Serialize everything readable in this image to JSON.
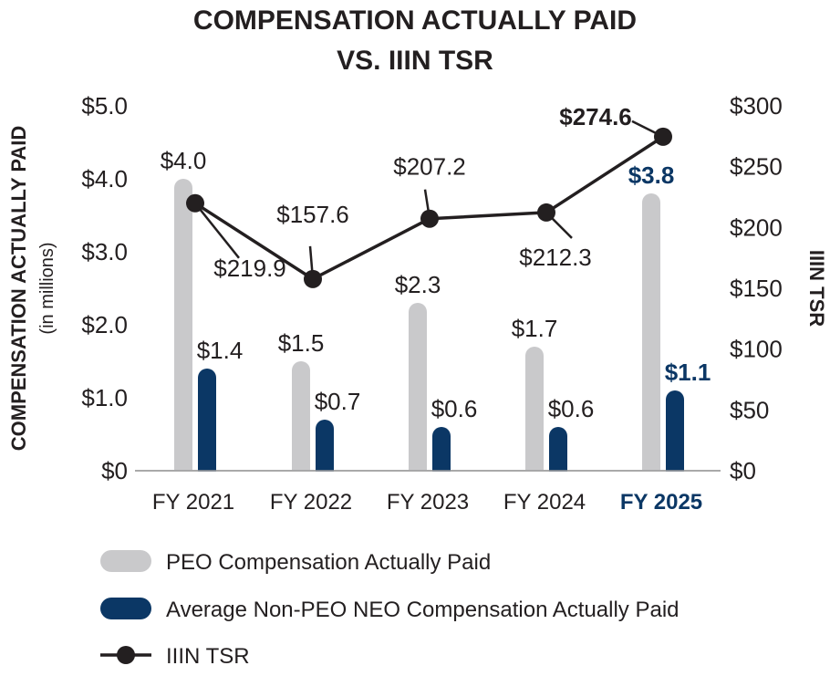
{
  "chart_data": {
    "type": "bar",
    "title_lines": [
      "COMPENSATION ACTUALLY PAID",
      "VS. IIIN TSR"
    ],
    "categories": [
      "FY 2021",
      "FY 2022",
      "FY 2023",
      "FY 2024",
      "FY 2025"
    ],
    "highlight_category": "FY 2025",
    "y_left": {
      "label": "COMPENSATION ACTUALLY PAID",
      "sublabel": "(in millions)",
      "range": [
        0,
        5
      ],
      "ticks": [
        0,
        1,
        2,
        3,
        4,
        5
      ],
      "tick_labels": [
        "$0",
        "$1.0",
        "$2.0",
        "$3.0",
        "$4.0",
        "$5.0"
      ]
    },
    "y_right": {
      "label": "IIIN TSR",
      "range": [
        0,
        300
      ],
      "ticks": [
        0,
        50,
        100,
        150,
        200,
        250,
        300
      ],
      "tick_labels": [
        "$0",
        "$50",
        "$100",
        "$150",
        "$200",
        "$250",
        "$300"
      ]
    },
    "series": [
      {
        "name": "PEO Compensation Actually Paid",
        "kind": "bar",
        "axis": "left",
        "color": "#c9c9cb",
        "values": [
          4.0,
          1.5,
          2.3,
          1.7,
          3.8
        ],
        "labels": [
          "$4.0",
          "$1.5",
          "$2.3",
          "$1.7",
          "$3.8"
        ]
      },
      {
        "name": "Average Non-PEO NEO Compensation Actually Paid",
        "kind": "bar",
        "axis": "left",
        "color": "#0b3765",
        "values": [
          1.4,
          0.7,
          0.6,
          0.6,
          1.1
        ],
        "labels": [
          "$1.4",
          "$0.7",
          "$0.6",
          "$0.6",
          "$1.1"
        ]
      },
      {
        "name": "IIIN TSR",
        "kind": "line",
        "axis": "right",
        "color": "#231f20",
        "values": [
          219.9,
          157.6,
          207.2,
          212.3,
          274.6
        ],
        "labels": [
          "$219.9",
          "$157.6",
          "$207.2",
          "$212.3",
          "$274.6"
        ]
      }
    ],
    "legend": {
      "placement": "bottom-left",
      "items": [
        "PEO Compensation Actually Paid",
        "Average Non-PEO NEO Compensation Actually Paid",
        "IIIN TSR"
      ]
    },
    "colors": {
      "text": "#231f20",
      "axis": "#9b9b9b",
      "highlight": "#0b3765"
    }
  }
}
